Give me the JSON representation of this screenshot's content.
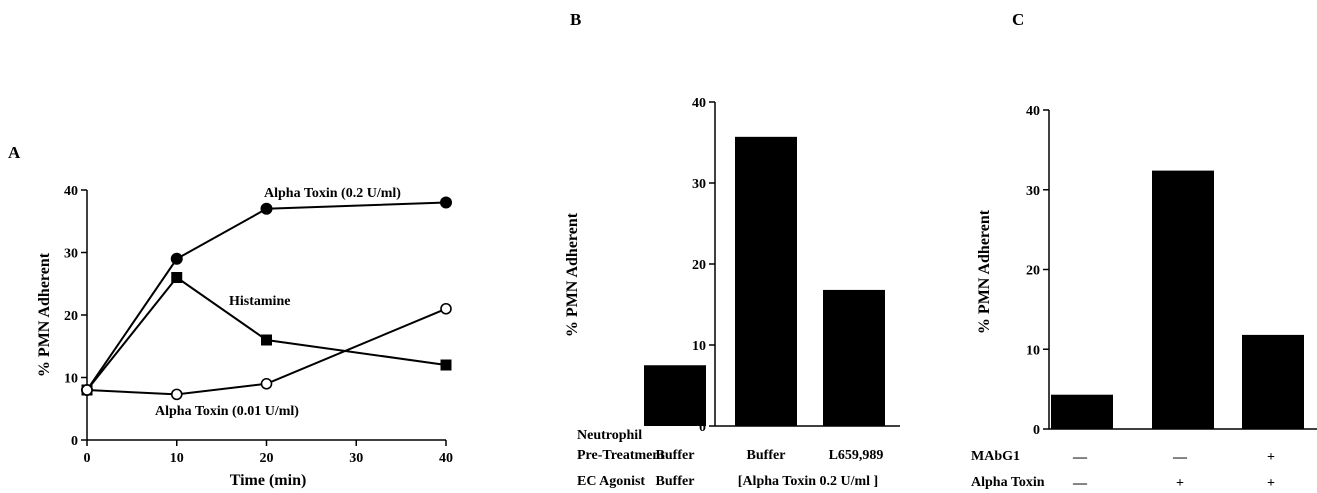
{
  "chart_data": [
    {
      "panel": "A",
      "type": "line",
      "xlabel": "Time (min)",
      "ylabel": "% PMN Adherent",
      "xlim": [
        0,
        40
      ],
      "ylim": [
        0,
        40
      ],
      "xticks": [
        "0",
        "10",
        "20",
        "30",
        "40"
      ],
      "yticks": [
        "0",
        "10",
        "20",
        "30",
        "40"
      ],
      "series": [
        {
          "name": "Alpha Toxin (0.2 U/ml)",
          "marker": "filled-circle",
          "x": [
            0,
            10,
            20,
            40
          ],
          "y": [
            8,
            29,
            37,
            38
          ]
        },
        {
          "name": "Histamine",
          "marker": "filled-square",
          "x": [
            0,
            10,
            20,
            40
          ],
          "y": [
            8,
            26,
            16,
            12
          ]
        },
        {
          "name": "Alpha Toxin (0.01 U/ml)",
          "marker": "open-circle",
          "x": [
            0,
            10,
            20,
            40
          ],
          "y": [
            8,
            7.3,
            9,
            21
          ]
        }
      ]
    },
    {
      "panel": "B",
      "type": "bar",
      "ylabel": "% PMN Adherent",
      "ylim": [
        0,
        40
      ],
      "yticks": [
        "0",
        "10",
        "20",
        "30",
        "40"
      ],
      "values": [
        7.5,
        35.7,
        16.8
      ],
      "rows": [
        {
          "label_line1": "Neutrophil",
          "label_line2": "Pre-Treatment",
          "cells": [
            "Buffer",
            "Buffer",
            "L659,989"
          ]
        },
        {
          "label": "EC Agonist",
          "cells": [
            "Buffer",
            "[Alpha Toxin 0.2 U/ml ]"
          ]
        }
      ]
    },
    {
      "panel": "C",
      "type": "bar",
      "ylabel": "% PMN Adherent",
      "ylim": [
        0,
        40
      ],
      "yticks": [
        "0",
        "10",
        "20",
        "30",
        "40"
      ],
      "values": [
        4.3,
        32.4,
        11.8
      ],
      "rows": [
        {
          "label": "MAbG1",
          "cells": [
            "—",
            "—",
            "+"
          ]
        },
        {
          "label": "Alpha Toxin",
          "cells": [
            "—",
            "+",
            "+"
          ]
        }
      ]
    }
  ]
}
